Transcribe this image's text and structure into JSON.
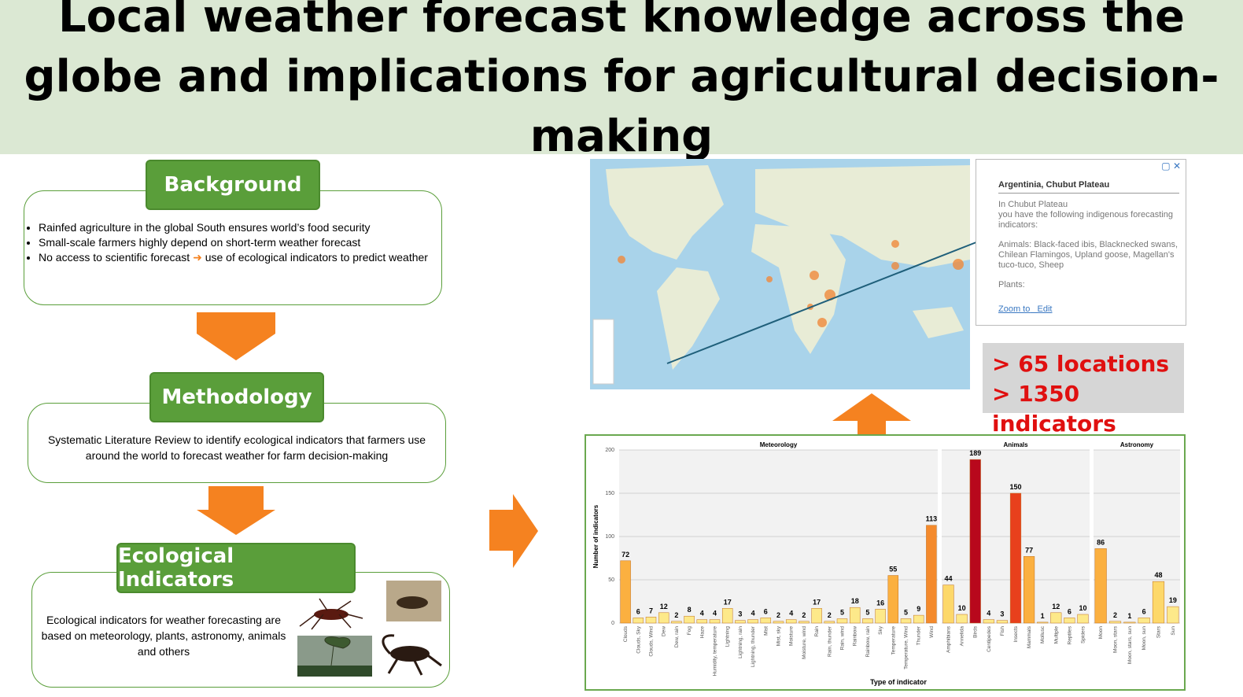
{
  "header": {
    "title": "Local weather forecast knowledge across the globe and implications for agricultural decision-making"
  },
  "background": {
    "heading": "Background",
    "bullets": [
      "Rainfed agriculture in the global South ensures world’s food security",
      "Small-scale farmers highly depend on short-term weather forecast"
    ],
    "last_bullet": [
      "No access to scientific forecast",
      "use of ecological indicators to predict weather"
    ]
  },
  "methodology": {
    "heading": "Methodology",
    "text": "Systematic Literature Review to identify ecological indicators that farmers use around the world to forecast weather for farm decision-making"
  },
  "ecological": {
    "heading": "Ecological Indicators",
    "text": "Ecological indicators for weather forecasting are based on meteorology, plants, astronomy, animals and others"
  },
  "map_popup": {
    "title": "Argentinia, Chubut Plateau",
    "lines": [
      "In Chubut Plateau",
      "you have the following indigenous forecasting indicators:"
    ],
    "animals": "Animals: Black-faced ibis, Blacknecked swans, Chilean Flamingos, Upland goose, Magellan's tuco-tuco, Sheep",
    "plants": "Plants:",
    "links": [
      "Zoom to",
      "Edit"
    ]
  },
  "stats": [
    "> 65 locations",
    "> 1350 indicators"
  ],
  "chart_data": {
    "type": "bar",
    "ylabel": "Number of indicators",
    "xlabel": "Type of indicator",
    "ylim": [
      0,
      200
    ],
    "yticks": [
      0,
      50,
      100,
      150,
      200
    ],
    "grid": true,
    "panels": [
      {
        "title": "Meteorology",
        "categories": [
          "Clouds",
          "Clouds, Sky",
          "Clouds, Wind",
          "Dew",
          "Dew, rain",
          "Fog",
          "Haze",
          "Humidity, temperature",
          "Lightning",
          "Lightning, rain",
          "Lightning, thunder",
          "Mist",
          "Mist, sky",
          "Moisture",
          "Moisture, wind",
          "Rain",
          "Rain, thunder",
          "Rain, wind",
          "Rainbow",
          "Rainbow, rain",
          "Sky",
          "Temperature",
          "Temperature, Wind",
          "Thunder",
          "Wind"
        ],
        "values": [
          72,
          6,
          7,
          12,
          2,
          8,
          4,
          4,
          17,
          3,
          4,
          6,
          2,
          4,
          2,
          17,
          2,
          5,
          18,
          5,
          16,
          55,
          5,
          9,
          113
        ],
        "colors": [
          "#fbb040",
          "#fde98a",
          "#fde98a",
          "#fde98a",
          "#fde98a",
          "#fde98a",
          "#fde98a",
          "#fde98a",
          "#fde98a",
          "#fde98a",
          "#fde98a",
          "#fde98a",
          "#fde98a",
          "#fde98a",
          "#fde98a",
          "#fde98a",
          "#fde98a",
          "#fde98a",
          "#fde98a",
          "#fde98a",
          "#fde98a",
          "#fbb040",
          "#fde98a",
          "#fde98a",
          "#f48a2c"
        ]
      },
      {
        "title": "Animals",
        "categories": [
          "Amphibians",
          "Annelida",
          "Birds",
          "Centipedes",
          "Fish",
          "Insects",
          "Mammals",
          "Mollusc",
          "Multiple",
          "Reptiles",
          "Spiders"
        ],
        "values": [
          44,
          10,
          189,
          4,
          3,
          150,
          77,
          1,
          12,
          6,
          10
        ],
        "colors": [
          "#fdd86a",
          "#fde98a",
          "#b8081c",
          "#fde98a",
          "#fde98a",
          "#e8401c",
          "#fbb040",
          "#fde98a",
          "#fde98a",
          "#fde98a",
          "#fde98a"
        ]
      },
      {
        "title": "Astronomy",
        "categories": [
          "Moon",
          "Moon, stars",
          "Moon, stars, sun",
          "Moon, sun",
          "Stars",
          "Sun"
        ],
        "values": [
          86,
          2,
          1,
          6,
          48,
          19
        ],
        "colors": [
          "#fbb040",
          "#fde98a",
          "#fde98a",
          "#fde98a",
          "#fdd86a",
          "#fde98a"
        ]
      }
    ]
  }
}
